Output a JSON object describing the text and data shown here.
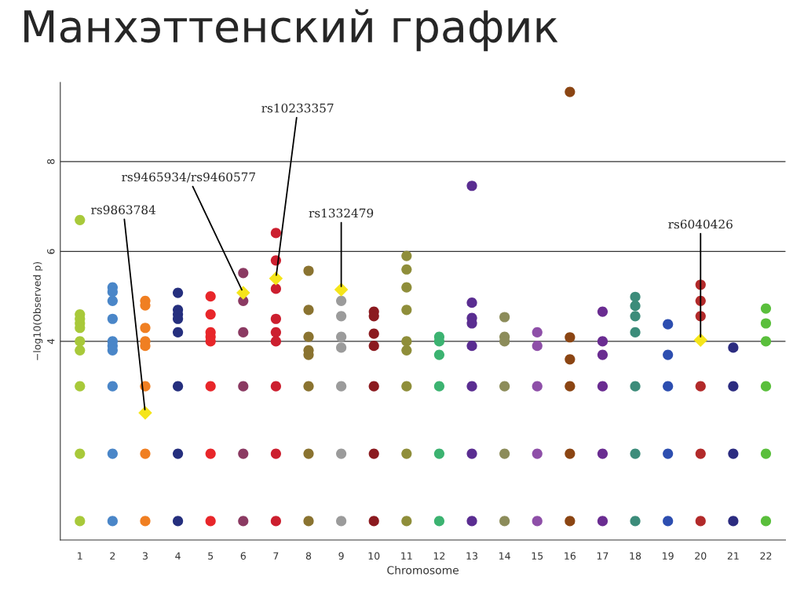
{
  "chart_data": {
    "type": "scatter",
    "title": "Манхэттенский график",
    "xlabel": "Chromosome",
    "ylabel": "−log10(Observed p)",
    "categories": [
      "1",
      "2",
      "3",
      "4",
      "5",
      "6",
      "7",
      "8",
      "9",
      "10",
      "11",
      "12",
      "13",
      "14",
      "15",
      "16",
      "17",
      "18",
      "19",
      "20",
      "21",
      "22"
    ],
    "ylim": [
      -0.42,
      9.76
    ],
    "yticks": [
      4,
      6,
      8
    ],
    "grid": "y",
    "legend": false,
    "marker": "circle",
    "series": [
      {
        "color": "#a8c93a",
        "x": [
          "1",
          "1",
          "1",
          "1",
          "1",
          "1",
          "1",
          "1",
          "1",
          "1"
        ],
        "values": [
          6.7,
          4.6,
          4.5,
          4.4,
          4.3,
          4.0,
          3.8,
          3.0,
          1.5,
          0
        ]
      },
      {
        "color": "#4a86c8",
        "x": [
          "2",
          "2",
          "2",
          "2",
          "2",
          "2",
          "2",
          "2",
          "2",
          "2"
        ],
        "values": [
          5.2,
          5.1,
          4.9,
          4.5,
          4.0,
          3.9,
          3.8,
          3.0,
          1.5,
          0
        ]
      },
      {
        "color": "#f07f22",
        "x": [
          "3",
          "3",
          "3",
          "3",
          "3",
          "3",
          "3",
          "3"
        ],
        "values": [
          4.9,
          4.8,
          4.3,
          4.0,
          3.9,
          3.0,
          1.5,
          0
        ]
      },
      {
        "color": "#252f7e",
        "x": [
          "4",
          "4",
          "4",
          "4",
          "4",
          "4",
          "4",
          "4"
        ],
        "values": [
          5.08,
          4.7,
          4.6,
          4.5,
          4.2,
          3.0,
          1.5,
          0
        ]
      },
      {
        "color": "#e8262a",
        "x": [
          "5",
          "5",
          "5",
          "5",
          "5",
          "5",
          "5",
          "5"
        ],
        "values": [
          5.0,
          4.6,
          4.2,
          4.1,
          4.0,
          3.0,
          1.5,
          0
        ]
      },
      {
        "color": "#8b3a62",
        "x": [
          "6",
          "6",
          "6",
          "6",
          "6",
          "6"
        ],
        "values": [
          5.52,
          4.9,
          4.2,
          3.0,
          1.5,
          0
        ]
      },
      {
        "color": "#cc1f2f",
        "x": [
          "7",
          "7",
          "7",
          "7",
          "7",
          "7",
          "7",
          "7",
          "7"
        ],
        "values": [
          6.41,
          5.8,
          5.17,
          4.5,
          4.2,
          4.0,
          3.0,
          1.5,
          0
        ]
      },
      {
        "color": "#8a7330",
        "x": [
          "8",
          "8",
          "8",
          "8",
          "8",
          "8",
          "8",
          "8"
        ],
        "values": [
          5.57,
          4.7,
          4.1,
          3.8,
          3.7,
          3.0,
          1.5,
          0
        ]
      },
      {
        "color": "#9b9b9b",
        "x": [
          "9",
          "9",
          "9",
          "9",
          "9",
          "9",
          "9"
        ],
        "values": [
          4.9,
          4.56,
          4.1,
          3.86,
          3.0,
          1.5,
          0
        ]
      },
      {
        "color": "#8b1a1f",
        "x": [
          "10",
          "10",
          "10",
          "10",
          "10",
          "10",
          "10"
        ],
        "values": [
          4.66,
          4.56,
          4.17,
          3.9,
          3.0,
          1.5,
          0
        ]
      },
      {
        "color": "#8f8e3a",
        "x": [
          "11",
          "11",
          "11",
          "11",
          "11",
          "11",
          "11",
          "11",
          "11"
        ],
        "values": [
          5.9,
          5.6,
          5.2,
          4.7,
          4.0,
          3.8,
          3.0,
          1.5,
          0
        ]
      },
      {
        "color": "#3cb371",
        "x": [
          "12",
          "12",
          "12",
          "12",
          "12",
          "12"
        ],
        "values": [
          4.1,
          4.0,
          3.7,
          3.0,
          1.5,
          0
        ]
      },
      {
        "color": "#5a2d91",
        "x": [
          "13",
          "13",
          "13",
          "13",
          "13",
          "13",
          "13",
          "13"
        ],
        "values": [
          7.46,
          4.86,
          4.52,
          4.4,
          3.9,
          3.0,
          1.5,
          0
        ]
      },
      {
        "color": "#8c8c5a",
        "x": [
          "14",
          "14",
          "14",
          "14",
          "14",
          "14"
        ],
        "values": [
          4.54,
          4.1,
          4.0,
          3.0,
          1.5,
          0
        ]
      },
      {
        "color": "#8e4fa8",
        "x": [
          "15",
          "15",
          "15",
          "15",
          "15"
        ],
        "values": [
          4.2,
          3.9,
          3.0,
          1.5,
          0
        ]
      },
      {
        "color": "#8b4513",
        "x": [
          "16",
          "16",
          "16",
          "16",
          "16",
          "16"
        ],
        "values": [
          9.55,
          4.09,
          3.6,
          3.0,
          1.5,
          0
        ]
      },
      {
        "color": "#6a2c91",
        "x": [
          "17",
          "17",
          "17",
          "17",
          "17",
          "17"
        ],
        "values": [
          4.66,
          4.0,
          3.7,
          3.0,
          1.5,
          0
        ]
      },
      {
        "color": "#3c8c7a",
        "x": [
          "18",
          "18",
          "18",
          "18",
          "18",
          "18",
          "18"
        ],
        "values": [
          4.99,
          4.79,
          4.56,
          4.2,
          3.0,
          1.5,
          0
        ]
      },
      {
        "color": "#2d4eb0",
        "x": [
          "19",
          "19",
          "19",
          "19",
          "19"
        ],
        "values": [
          4.38,
          3.7,
          3.0,
          1.5,
          0
        ]
      },
      {
        "color": "#b22a2a",
        "x": [
          "20",
          "20",
          "20",
          "20",
          "20",
          "20"
        ],
        "values": [
          5.26,
          4.9,
          4.56,
          3.0,
          1.5,
          0
        ]
      },
      {
        "color": "#2c2c80",
        "x": [
          "21",
          "21",
          "21",
          "21"
        ],
        "values": [
          3.86,
          3.0,
          1.5,
          0
        ]
      },
      {
        "color": "#5abf3c",
        "x": [
          "22",
          "22",
          "22",
          "22",
          "22",
          "22"
        ],
        "values": [
          4.73,
          4.4,
          4.0,
          3.0,
          1.5,
          0
        ]
      },
      {
        "color": "#f5e51a",
        "marker": "diamond",
        "x": [
          "3",
          "6",
          "7",
          "9",
          "20"
        ],
        "values": [
          2.41,
          5.08,
          5.4,
          5.15,
          4.03
        ]
      }
    ],
    "annotations": [
      {
        "text": "rs9863784",
        "x": "3",
        "y": 2.41
      },
      {
        "text": "rs9465934/rs9460577",
        "x": "6",
        "y": 5.08
      },
      {
        "text": "rs10233357",
        "x": "7",
        "y": 5.4
      },
      {
        "text": "rs1332479",
        "x": "9",
        "y": 5.15
      },
      {
        "text": "rs6040426",
        "x": "20",
        "y": 4.03
      }
    ]
  }
}
